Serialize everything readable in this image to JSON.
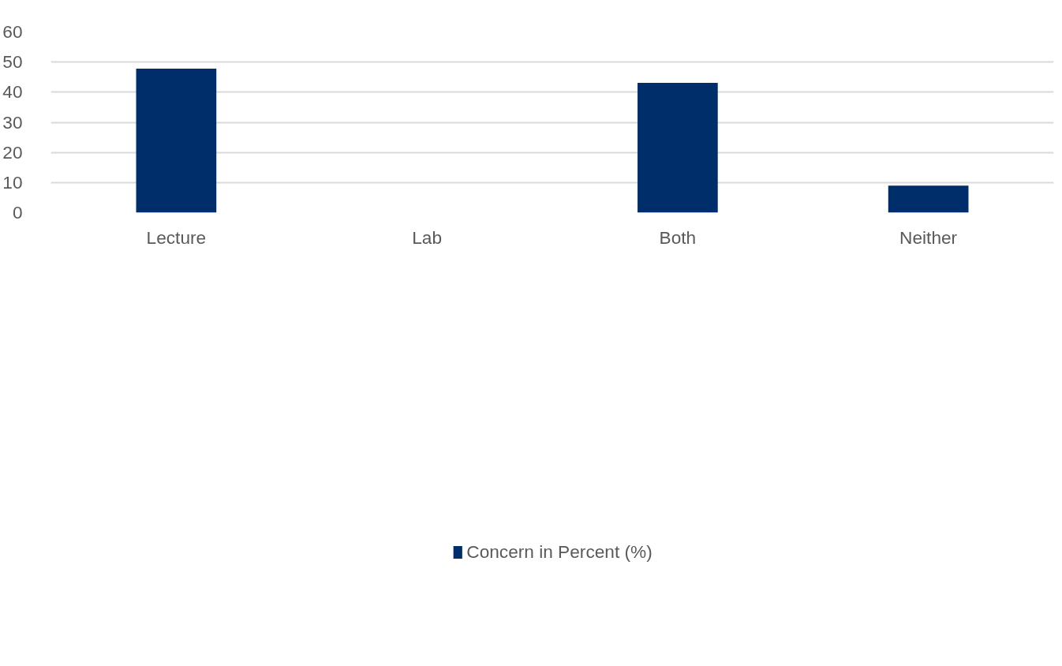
{
  "chart_data": {
    "type": "bar",
    "categories": [
      "Lecture",
      "Lab",
      "Both",
      "Neither"
    ],
    "series": [
      {
        "name": "Concern in Percent (%)",
        "color": "#002e6b",
        "values": [
          47.8,
          0,
          43.1,
          9.0
        ]
      }
    ],
    "ylim": [
      0,
      60
    ],
    "yticks": [
      0,
      10,
      20,
      30,
      40,
      50,
      60
    ],
    "grid": "y",
    "legend": "bottom"
  }
}
